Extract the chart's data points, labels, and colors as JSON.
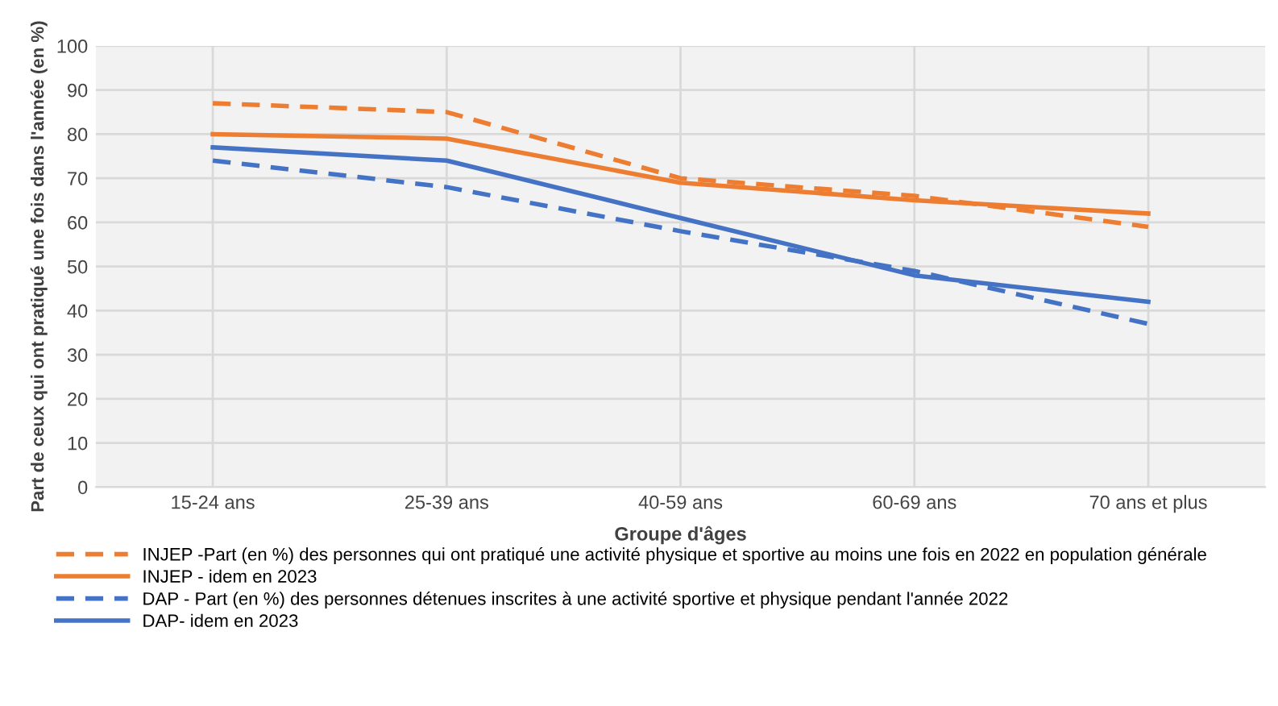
{
  "chart_data": {
    "type": "line",
    "xlabel": "Groupe d'âges",
    "ylabel": "Part de ceux qui ont pratiqué une fois dans l'année (en %)",
    "categories": [
      "15-24 ans",
      "25-39 ans",
      "40-59 ans",
      "60-69 ans",
      "70 ans et plus"
    ],
    "series": [
      {
        "name": "INJEP -Part (en %) des personnes qui ont pratiqué une activité physique et sportive au moins une fois en 2022 en population générale",
        "color": "#ed7d31",
        "line_style": "dashed",
        "values": [
          87,
          85,
          70,
          66,
          59
        ]
      },
      {
        "name": "INJEP - idem en 2023",
        "color": "#ed7d31",
        "line_style": "solid",
        "values": [
          80,
          79,
          69,
          65,
          62
        ]
      },
      {
        "name": "DAP - Part (en %) des personnes détenues inscrites à une activité sportive et physique pendant l'année 2022",
        "color": "#4472c4",
        "line_style": "dashed",
        "values": [
          74,
          68,
          58,
          49,
          37
        ]
      },
      {
        "name": "DAP- idem en 2023",
        "color": "#4472c4",
        "line_style": "solid",
        "values": [
          77,
          74,
          61,
          48,
          42
        ]
      }
    ],
    "ylim": [
      0,
      100
    ],
    "yticks": [
      0,
      10,
      20,
      30,
      40,
      50,
      60,
      70,
      80,
      90,
      100
    ],
    "grid": true,
    "legend": "bottom left",
    "marker": "none"
  }
}
